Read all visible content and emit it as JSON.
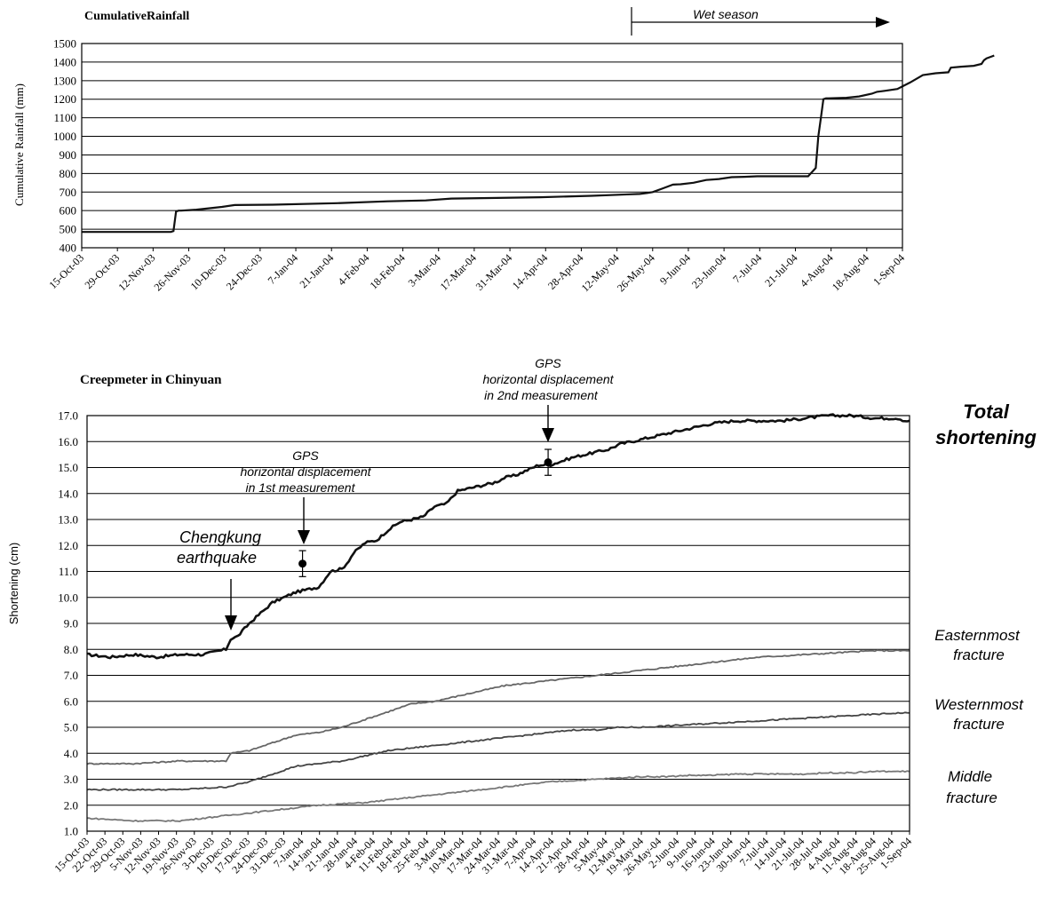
{
  "chart_data": [
    {
      "type": "line",
      "title": "CumulativeRainfall",
      "ylabel": "Cumulative Rainfall (mm)",
      "xlabel": "",
      "ylim": [
        400,
        1500
      ],
      "yticks": [
        "400",
        "500",
        "600",
        "700",
        "800",
        "900",
        "1000",
        "1100",
        "1200",
        "1300",
        "1400",
        "1500"
      ],
      "grid": true,
      "x_tick_labels": [
        "15-Oct-03",
        "29-Oct-03",
        "12-Nov-03",
        "26-Nov-03",
        "10-Dec-03",
        "24-Dec-03",
        "7-Jan-04",
        "21-Jan-04",
        "4-Feb-04",
        "18-Feb-04",
        "3-Mar-04",
        "17-Mar-04",
        "31-Mar-04",
        "14-Apr-04",
        "28-Apr-04",
        "12-May-04",
        "26-May-04",
        "9-Jun-04",
        "23-Jun-04",
        "7-Jul-04",
        "21-Jul-04",
        "4-Aug-04",
        "18-Aug-04",
        "1-Sep-04"
      ],
      "annotation": "Wet season",
      "wet_season_start_day": 221,
      "series": [
        {
          "x": [
            0,
            35,
            36,
            37,
            38,
            39,
            45,
            55,
            60,
            75,
            100,
            120,
            135,
            145,
            160,
            180,
            200,
            215,
            219,
            222,
            224,
            228,
            232,
            235,
            240,
            245,
            250,
            255,
            260,
            265,
            270,
            285,
            288,
            289,
            290,
            291,
            292,
            293,
            300,
            305,
            310,
            312,
            315,
            320,
            325,
            330,
            335,
            340,
            341,
            345,
            350,
            353,
            354,
            355,
            357,
            358
          ],
          "values": [
            485,
            485,
            490,
            595,
            600,
            600,
            605,
            620,
            630,
            632,
            640,
            650,
            655,
            665,
            668,
            672,
            680,
            688,
            690,
            695,
            700,
            720,
            740,
            742,
            750,
            765,
            770,
            780,
            782,
            785,
            785,
            785,
            830,
            1000,
            1100,
            1200,
            1205,
            1205,
            1208,
            1215,
            1230,
            1240,
            1245,
            1255,
            1290,
            1330,
            1340,
            1345,
            1370,
            1375,
            1380,
            1390,
            1410,
            1420,
            1430,
            1435
          ]
        }
      ]
    },
    {
      "type": "line",
      "title": "Creepmeter in Chinyuan",
      "ylabel": "Shortening (cm)",
      "xlabel": "",
      "ylim": [
        1.0,
        17.0
      ],
      "yticks": [
        "1.0",
        "2.0",
        "3.0",
        "4.0",
        "5.0",
        "6.0",
        "7.0",
        "8.0",
        "9.0",
        "10.0",
        "11.0",
        "12.0",
        "13.0",
        "14.0",
        "15.0",
        "16.0",
        "17.0"
      ],
      "grid": true,
      "x_tick_labels": [
        "15-Oct-03",
        "22-Oct-03",
        "29-Oct-03",
        "5-Nov-03",
        "12-Nov-03",
        "19-Nov-03",
        "26-Nov-03",
        "3-Dec-03",
        "10-Dec-03",
        "17-Dec-03",
        "24-Dec-03",
        "31-Dec-03",
        "7-Jan-04",
        "14-Jan-04",
        "21-Jan-04",
        "28-Jan-04",
        "4-Feb-04",
        "11-Feb-04",
        "18-Feb-04",
        "25-Feb-04",
        "3-Mar-04",
        "10-Mar-04",
        "17-Mar-04",
        "24-Mar-04",
        "31-Mar-04",
        "7-Apr-04",
        "14-Apr-04",
        "21-Apr-04",
        "28-Apr-04",
        "5-May-04",
        "12-May-04",
        "19-May-04",
        "26-May-04",
        "2-Jun-04",
        "9-Jun-04",
        "16-Jun-04",
        "23-Jun-04",
        "30-Jun-04",
        "7-Jul-04",
        "14-Jul-04",
        "21-Jul-04",
        "28-Jul-04",
        "4-Aug-04",
        "11-Aug-04",
        "18-Aug-04",
        "25-Aug-04",
        "1-Sep-04"
      ],
      "series": [
        {
          "name": "Total shortening",
          "color": "#111111",
          "x": [
            0,
            10,
            20,
            30,
            40,
            50,
            55,
            60,
            62,
            65,
            70,
            75,
            80,
            85,
            90,
            95,
            100,
            105,
            110,
            112,
            115,
            120,
            125,
            130,
            135,
            140,
            145,
            150,
            155,
            160,
            165,
            170,
            175,
            178,
            180,
            185,
            190,
            195,
            200,
            210,
            220,
            225,
            230,
            240,
            250,
            260,
            270,
            280,
            290,
            300,
            310,
            320,
            330,
            340,
            350,
            353,
            355
          ],
          "values": [
            7.8,
            7.7,
            7.8,
            7.7,
            7.8,
            7.8,
            7.9,
            8.0,
            8.4,
            8.5,
            9.0,
            9.4,
            9.8,
            10.0,
            10.2,
            10.3,
            10.4,
            11.0,
            11.1,
            11.3,
            11.7,
            12.1,
            12.2,
            12.6,
            12.9,
            13.0,
            13.1,
            13.5,
            13.6,
            14.1,
            14.2,
            14.3,
            14.4,
            14.5,
            14.6,
            14.7,
            14.9,
            15.1,
            15.1,
            15.4,
            15.6,
            15.7,
            15.9,
            16.1,
            16.3,
            16.5,
            16.7,
            16.8,
            16.8,
            16.8,
            16.9,
            17.0,
            17.0,
            16.9,
            16.9,
            16.8,
            16.8
          ]
        },
        {
          "name": "Easternmost fracture",
          "color": "#666666",
          "x": [
            0,
            20,
            40,
            60,
            62,
            70,
            80,
            90,
            100,
            105,
            110,
            120,
            130,
            140,
            150,
            160,
            170,
            180,
            190,
            200,
            210,
            220,
            230,
            240,
            250,
            260,
            270,
            280,
            290,
            300,
            310,
            320,
            330,
            340,
            350,
            355
          ],
          "values": [
            3.6,
            3.6,
            3.7,
            3.7,
            4.0,
            4.1,
            4.4,
            4.7,
            4.8,
            4.9,
            5.0,
            5.3,
            5.6,
            5.9,
            6.0,
            6.2,
            6.4,
            6.6,
            6.7,
            6.8,
            6.9,
            7.0,
            7.1,
            7.2,
            7.3,
            7.4,
            7.5,
            7.6,
            7.7,
            7.75,
            7.8,
            7.85,
            7.9,
            7.95,
            7.95,
            7.95
          ]
        },
        {
          "name": "Westernmost fracture",
          "color": "#444444",
          "x": [
            0,
            20,
            40,
            60,
            70,
            80,
            90,
            100,
            110,
            120,
            130,
            140,
            150,
            160,
            170,
            180,
            190,
            200,
            210,
            220,
            230,
            240,
            250,
            260,
            270,
            280,
            290,
            300,
            310,
            320,
            330,
            340,
            350,
            355
          ],
          "values": [
            2.6,
            2.6,
            2.6,
            2.7,
            2.9,
            3.2,
            3.5,
            3.6,
            3.7,
            3.9,
            4.1,
            4.2,
            4.3,
            4.4,
            4.5,
            4.6,
            4.7,
            4.8,
            4.9,
            4.9,
            5.0,
            5.0,
            5.05,
            5.1,
            5.15,
            5.2,
            5.25,
            5.3,
            5.35,
            5.4,
            5.45,
            5.5,
            5.55,
            5.55
          ]
        },
        {
          "name": "Middle fracture",
          "color": "#777777",
          "x": [
            0,
            20,
            40,
            60,
            70,
            80,
            90,
            100,
            110,
            120,
            130,
            140,
            150,
            160,
            170,
            180,
            190,
            200,
            210,
            220,
            230,
            240,
            250,
            260,
            270,
            280,
            290,
            300,
            310,
            320,
            330,
            340,
            350,
            355
          ],
          "values": [
            1.5,
            1.4,
            1.4,
            1.6,
            1.7,
            1.8,
            1.9,
            2.0,
            2.05,
            2.1,
            2.2,
            2.3,
            2.4,
            2.5,
            2.6,
            2.7,
            2.8,
            2.9,
            2.95,
            3.0,
            3.05,
            3.1,
            3.1,
            3.15,
            3.15,
            3.2,
            3.2,
            3.2,
            3.2,
            3.25,
            3.25,
            3.3,
            3.3,
            3.3
          ]
        }
      ],
      "gps_points": [
        {
          "x": 93,
          "y": 11.3,
          "err": 0.5,
          "label": "GPS horizontal displacement in 1st measurement"
        },
        {
          "x": 199,
          "y": 15.2,
          "err": 0.5,
          "label": "GPS horizontal displacement in 2nd measurement"
        }
      ],
      "annotations": [
        {
          "text": "Chengkung earthquake",
          "x": 62
        }
      ]
    }
  ],
  "labels": {
    "gps1_l1": "GPS",
    "gps1_l2": "horizontal displacement",
    "gps1_l3": "in 1st measurement",
    "gps2_l1": "GPS",
    "gps2_l2": "horizontal displacement",
    "gps2_l3": "in 2nd measurement",
    "quake_l1": "Chengkung",
    "quake_l2": "earthquake",
    "total_l1": "Total",
    "total_l2": "shortening",
    "east_l1": "Easternmost",
    "east_l2": "fracture",
    "west_l1": "Westernmost",
    "west_l2": "fracture",
    "mid_l1": "Middle",
    "mid_l2": "fracture"
  }
}
